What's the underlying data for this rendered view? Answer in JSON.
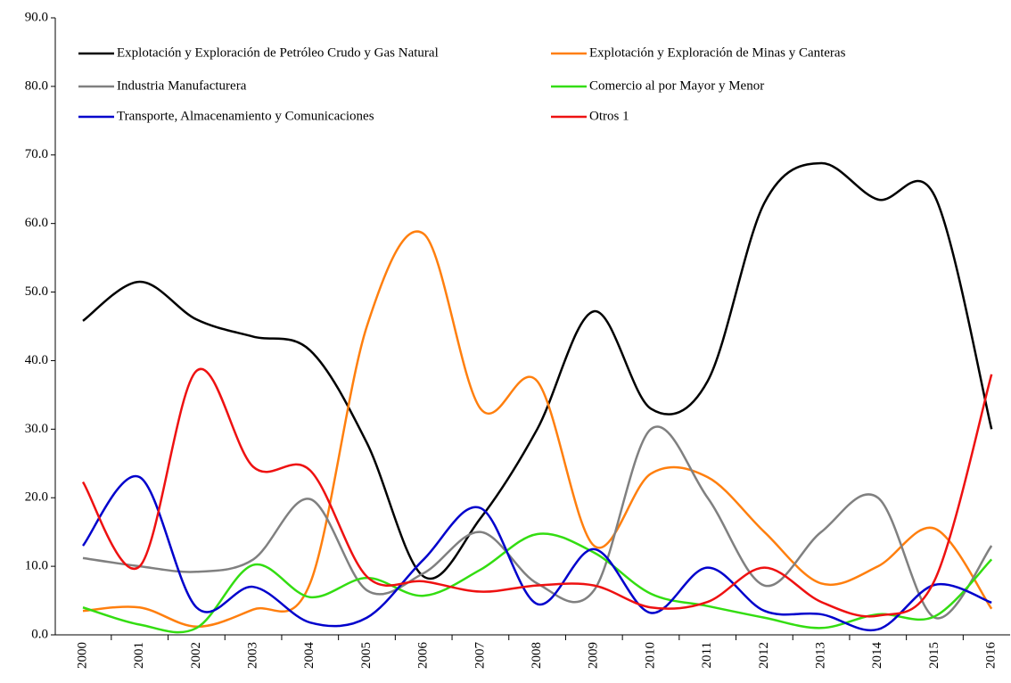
{
  "chart_data": {
    "type": "line",
    "smooth": true,
    "grid": false,
    "categories": [
      "2000",
      "2001",
      "2002",
      "2003",
      "2004",
      "2005",
      "2006",
      "2007",
      "2008",
      "2009",
      "2010",
      "2011",
      "2012",
      "2013",
      "2014",
      "2015",
      "2016"
    ],
    "ylim": [
      0,
      90
    ],
    "yticks": [
      {
        "value": 0,
        "label": "0.0"
      },
      {
        "value": 10,
        "label": "10.0"
      },
      {
        "value": 20,
        "label": "20.0"
      },
      {
        "value": 30,
        "label": "30.0"
      },
      {
        "value": 40,
        "label": "40.0"
      },
      {
        "value": 50,
        "label": "50.0"
      },
      {
        "value": 60,
        "label": "60.0"
      },
      {
        "value": 70,
        "label": "70.0"
      },
      {
        "value": 80,
        "label": "80.0"
      },
      {
        "value": 90,
        "label": "90.0"
      }
    ],
    "series": [
      {
        "name": "Explotación y Exploración de Petróleo Crudo y Gas Natural",
        "color": "#000000",
        "values": [
          45.8,
          51.5,
          46,
          43.5,
          41.5,
          28,
          8.5,
          17,
          30,
          47.2,
          33,
          37,
          63,
          68.8,
          63.5,
          64,
          30
        ]
      },
      {
        "name": "Explotación y Exploración de Minas y Canteras",
        "color": "#ff7f0e",
        "values": [
          3.5,
          4,
          1.2,
          3.7,
          7.5,
          45,
          58.5,
          33,
          37,
          13,
          23.5,
          23,
          15,
          7.5,
          10,
          15.5,
          3.8
        ]
      },
      {
        "name": "Industria Manufacturera",
        "color": "#808080",
        "values": [
          11.2,
          10,
          9.2,
          11,
          19.8,
          6.5,
          9,
          15,
          7.5,
          6.5,
          30,
          20,
          7.2,
          15,
          20,
          2.5,
          13
        ]
      },
      {
        "name": "Comercio al por Mayor y Menor",
        "color": "#33dd11",
        "values": [
          4,
          1.5,
          1,
          10.2,
          5.5,
          8.3,
          5.7,
          9.5,
          14.7,
          12,
          6,
          4.2,
          2.5,
          1,
          3,
          2.7,
          11
        ]
      },
      {
        "name": "Transporte, Almacenamiento y Comunicaciones",
        "color": "#0000cc",
        "values": [
          13,
          23,
          4,
          7,
          1.8,
          2.5,
          11,
          18.5,
          4.5,
          12.5,
          3.2,
          9.8,
          3.5,
          3,
          0.8,
          7.3,
          4.7
        ]
      },
      {
        "name": "Otros 1",
        "color": "#ee1111",
        "values": [
          22.3,
          10,
          38.5,
          24.5,
          24,
          8.5,
          7.8,
          6.3,
          7.2,
          7.2,
          4,
          4.8,
          9.8,
          4.8,
          2.8,
          8,
          38
        ]
      }
    ]
  }
}
